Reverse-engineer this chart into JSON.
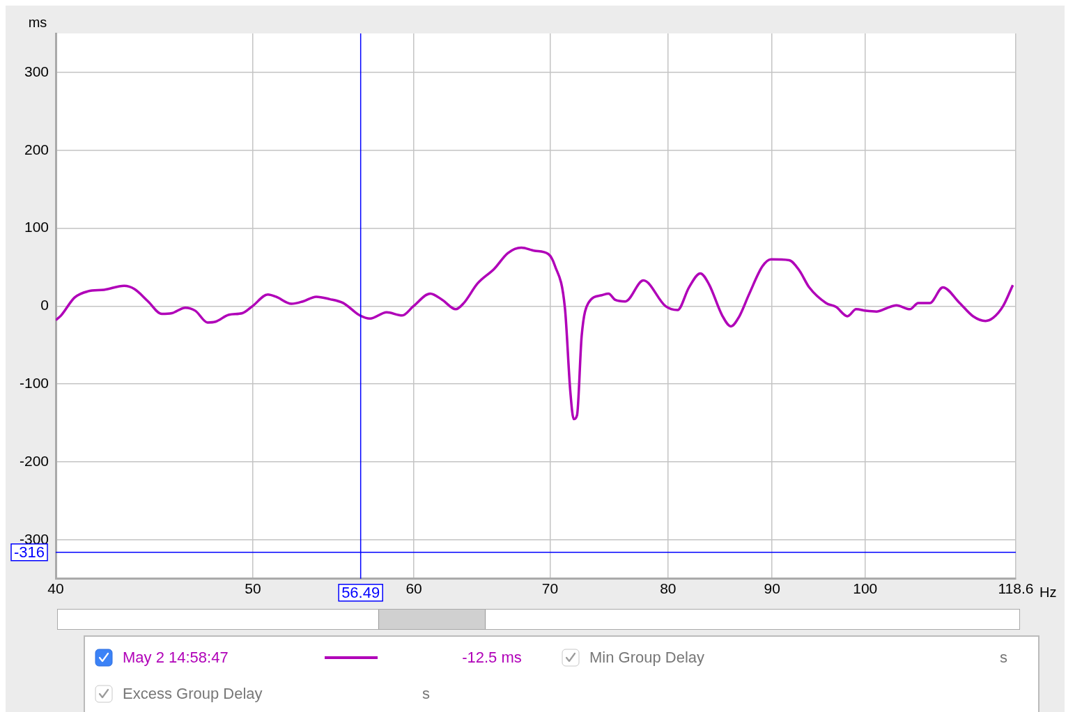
{
  "chart_data": {
    "type": "line",
    "xlabel": "Hz",
    "ylabel": "ms",
    "log": "x",
    "xlim": [
      40,
      118.6
    ],
    "xticks": [
      40,
      50,
      60,
      70,
      80,
      90,
      100,
      118.6
    ],
    "ylim": [
      -350,
      350
    ],
    "yticks": [
      -300,
      -200,
      -100,
      0,
      100,
      200,
      300
    ],
    "grid": true,
    "legend": "bottom",
    "marker": "none",
    "line_style": "solid",
    "series": [
      {
        "name": "May 2 14:58:47",
        "color": "#b000b8",
        "x": [
          40,
          40.24,
          40.86,
          41.48,
          42.25,
          43.22,
          43.72,
          44.41,
          45.1,
          45.62,
          46.32,
          46.85,
          47.5,
          47.93,
          48.67,
          49.41,
          49.98,
          50.86,
          51.33,
          52.23,
          52.91,
          53.72,
          54.54,
          55.38,
          56.44,
          57.09,
          58.18,
          59.21,
          59.97,
          61.12,
          61.96,
          62.91,
          63.49,
          64.48,
          65.72,
          66.73,
          67.76,
          68.79,
          69.85,
          70.38,
          71.19,
          71.62,
          71.9,
          72.17,
          72.55,
          73.1,
          74.22,
          74.79,
          75.36,
          76.22,
          77.8,
          79.77,
          80.87,
          81.92,
          82.98,
          83.8,
          85.06,
          85.9,
          86.69,
          87.68,
          89.02,
          89.9,
          91.76,
          92.81,
          93.87,
          95.67,
          96.76,
          98.02,
          98.99,
          100.1,
          101.3,
          102.4,
          103.6,
          105.2,
          106.2,
          107.6,
          109.2,
          111.3,
          113,
          114.6,
          115.6,
          116.9,
          118.2
        ],
        "values": [
          -18,
          -12,
          11,
          19,
          21,
          26,
          22,
          6,
          -10,
          -9,
          -2,
          -6,
          -21,
          -20,
          -11,
          -9,
          0,
          15,
          12,
          3,
          6,
          12,
          9,
          4,
          -12,
          -16,
          -8,
          -12,
          0,
          16,
          8,
          -4,
          4,
          29,
          48,
          68,
          75,
          71,
          67,
          52,
          -3,
          -109,
          -145,
          -140,
          -38,
          4,
          14,
          16,
          8,
          6,
          33,
          0,
          -5,
          24,
          42,
          28,
          -12,
          -26,
          -14,
          15,
          51,
          60,
          59,
          46,
          24,
          4,
          -1,
          -13,
          -4,
          -6,
          -7,
          -3,
          1,
          -4,
          4,
          4,
          24,
          4,
          -13,
          -19,
          -15,
          0,
          27
        ]
      }
    ],
    "ref_lines": [
      {
        "axis": "x",
        "value": 56.49,
        "label": "56.49",
        "color": "#0000ff"
      },
      {
        "axis": "y",
        "value": -316,
        "label": "-316",
        "color": "#0000ff"
      }
    ],
    "annotations": [
      "-12.5 ms",
      "Min Group Delay",
      "s",
      "Excess Group Delay",
      "s"
    ]
  }
}
